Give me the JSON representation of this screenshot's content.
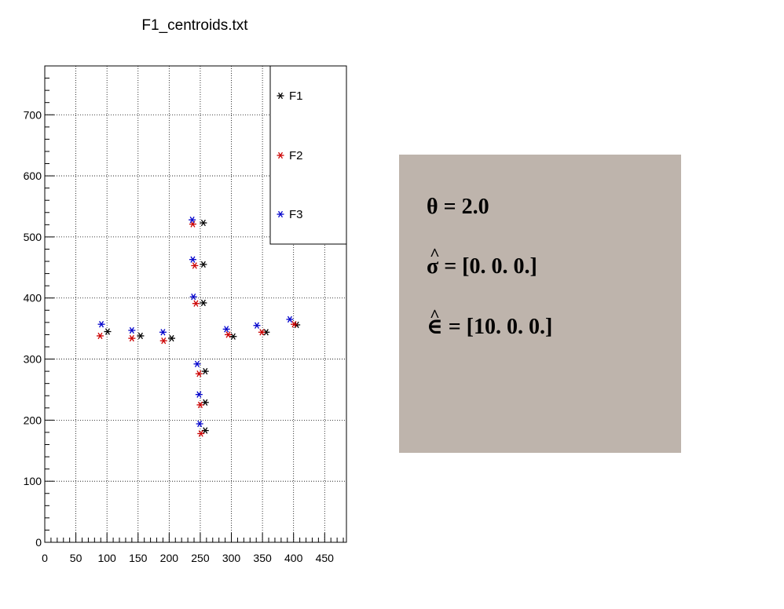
{
  "chart_data": {
    "type": "scatter",
    "title": "F1_centroids.txt",
    "xlabel": "",
    "ylabel": "",
    "xlim": [
      0,
      485
    ],
    "ylim": [
      0,
      780
    ],
    "x_ticks": [
      0,
      50,
      100,
      150,
      200,
      250,
      300,
      350,
      400,
      450
    ],
    "y_ticks": [
      0,
      100,
      200,
      300,
      400,
      500,
      600,
      700
    ],
    "grid": true,
    "legend_position": "top-right",
    "marker": "*",
    "series": [
      {
        "name": "F1",
        "color": "#000000",
        "points": [
          [
            255,
            523
          ],
          [
            255,
            455
          ],
          [
            255,
            392
          ],
          [
            101,
            345
          ],
          [
            154,
            338
          ],
          [
            204,
            334
          ],
          [
            303,
            337
          ],
          [
            356,
            344
          ],
          [
            405,
            356
          ],
          [
            258,
            280
          ],
          [
            258,
            229
          ],
          [
            258,
            183
          ]
        ]
      },
      {
        "name": "F2",
        "color": "#cc0000",
        "points": [
          [
            238,
            521
          ],
          [
            241,
            453
          ],
          [
            243,
            391
          ],
          [
            89,
            338
          ],
          [
            140,
            334
          ],
          [
            191,
            330
          ],
          [
            295,
            340
          ],
          [
            349,
            344
          ],
          [
            401,
            357
          ],
          [
            248,
            276
          ],
          [
            250,
            225
          ],
          [
            251,
            178
          ]
        ]
      },
      {
        "name": "F3",
        "color": "#0000cc",
        "points": [
          [
            237,
            528
          ],
          [
            238,
            463
          ],
          [
            239,
            402
          ],
          [
            91,
            357
          ],
          [
            140,
            347
          ],
          [
            190,
            344
          ],
          [
            292,
            349
          ],
          [
            341,
            355
          ],
          [
            394,
            365
          ],
          [
            245,
            292
          ],
          [
            248,
            242
          ],
          [
            249,
            194
          ]
        ]
      }
    ]
  },
  "info_box": {
    "background": "#beb4ac",
    "theta_line": "θ = 2.0",
    "sigma_line": "σ = [0. 0. 0.]",
    "epsilon_line": "∈ = [10.  0.  0.]",
    "hat_symbol": "^"
  }
}
